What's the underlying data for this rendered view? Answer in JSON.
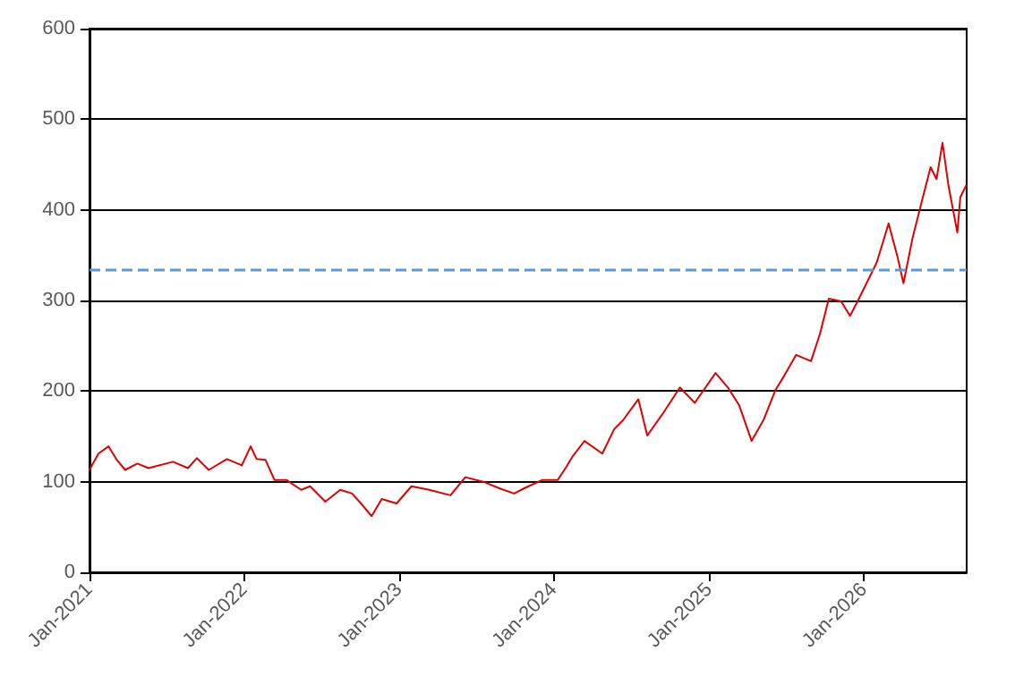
{
  "chart_data": {
    "type": "line",
    "x": [
      "2021-01-01",
      "2021-01-22",
      "2021-02-15",
      "2021-03-05",
      "2021-03-26",
      "2021-04-24",
      "2021-05-20",
      "2021-07-17",
      "2021-08-21",
      "2021-09-11",
      "2021-10-09",
      "2021-11-21",
      "2021-12-26",
      "2022-01-16",
      "2022-01-30",
      "2022-02-20",
      "2022-03-13",
      "2022-04-10",
      "2022-05-15",
      "2022-06-05",
      "2022-07-11",
      "2022-08-15",
      "2022-09-12",
      "2022-10-03",
      "2022-10-28",
      "2022-11-21",
      "2022-12-26",
      "2023-01-30",
      "2023-03-13",
      "2023-05-02",
      "2023-06-06",
      "2023-07-18",
      "2023-08-29",
      "2023-09-29",
      "2023-10-24",
      "2023-12-05",
      "2024-01-10",
      "2024-01-31",
      "2024-02-14",
      "2024-03-13",
      "2024-04-24",
      "2024-05-22",
      "2024-06-12",
      "2024-07-18",
      "2024-08-08",
      "2024-09-12",
      "2024-10-24",
      "2024-11-28",
      "2025-01-16",
      "2025-02-14",
      "2025-03-13",
      "2025-04-11",
      "2025-05-09",
      "2025-06-06",
      "2025-06-27",
      "2025-07-25",
      "2025-08-29",
      "2025-09-19",
      "2025-10-10",
      "2025-11-08",
      "2025-11-29",
      "2025-12-20",
      "2026-01-10",
      "2026-01-31",
      "2026-02-28",
      "2026-03-21",
      "2026-04-04",
      "2026-04-25",
      "2026-05-16",
      "2026-06-07",
      "2026-06-21",
      "2026-07-05",
      "2026-07-19",
      "2026-08-09",
      "2026-08-16",
      "2026-08-30"
    ],
    "series": [
      {
        "color": "#e00000",
        "values": [
          113,
          131,
          139,
          125,
          113,
          120,
          115,
          122,
          115,
          126,
          113,
          125,
          118,
          139,
          125,
          124,
          102,
          102,
          91,
          95,
          78,
          91,
          87,
          76,
          62,
          81,
          76,
          95,
          91,
          85,
          105,
          100,
          92,
          87,
          93,
          102,
          102,
          117,
          128,
          145,
          131,
          158,
          168,
          191,
          151,
          174,
          204,
          187,
          220,
          204,
          184,
          145,
          168,
          201,
          217,
          240,
          233,
          263,
          302,
          299,
          283,
          302,
          322,
          342,
          385,
          348,
          319,
          368,
          407,
          447,
          434,
          474,
          427,
          375,
          414,
          427
        ]
      }
    ],
    "xlim": [
      "2021-01-01",
      "2026-08-31"
    ],
    "xticks": [
      {
        "value": "2021-01-01",
        "label": "Jan-2021"
      },
      {
        "value": "2022-01-01",
        "label": "Jan-2022"
      },
      {
        "value": "2023-01-01",
        "label": "Jan-2023"
      },
      {
        "value": "2024-01-01",
        "label": "Jan-2024"
      },
      {
        "value": "2025-01-01",
        "label": "Jan-2025"
      },
      {
        "value": "2026-01-01",
        "label": "Jan-2026"
      }
    ],
    "ylim": [
      0,
      600
    ],
    "yticks": [
      0,
      100,
      200,
      300,
      400,
      500,
      600
    ],
    "grid": "y",
    "marker": "none",
    "line_style": "solid",
    "ref_lines": [
      {
        "axis": "y",
        "value": 335,
        "color": "#5b9bd5",
        "line_style": "dashed"
      }
    ]
  }
}
